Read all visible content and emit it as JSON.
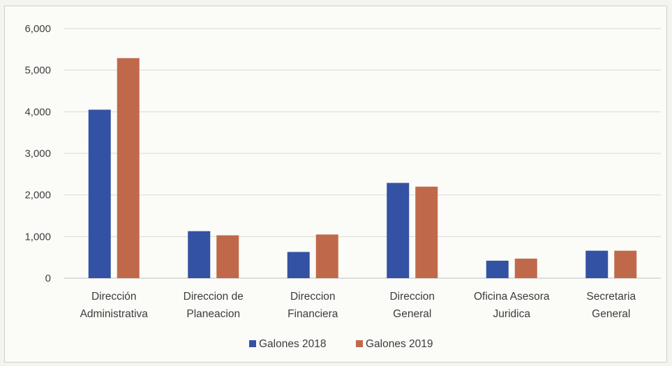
{
  "chart_data": {
    "type": "bar",
    "title": "",
    "xlabel": "",
    "ylabel": "",
    "categories": [
      [
        "Dirección",
        "Administrativa"
      ],
      [
        "Direccion de",
        "Planeacion"
      ],
      [
        "Direccion",
        "Financiera"
      ],
      [
        "Direccion",
        "General"
      ],
      [
        "Oficina Asesora",
        "Juridica"
      ],
      [
        "Secretaria",
        "General"
      ]
    ],
    "series": [
      {
        "name": "Galones 2018",
        "color": "#3452a4",
        "values": [
          4050,
          1130,
          630,
          2290,
          420,
          660
        ]
      },
      {
        "name": "Galones 2019",
        "color": "#c0694a",
        "values": [
          5290,
          1030,
          1050,
          2200,
          470,
          660
        ]
      }
    ],
    "ylim": [
      0,
      6000
    ],
    "y_ticks": [
      0,
      1000,
      2000,
      3000,
      4000,
      5000,
      6000
    ],
    "y_tick_labels": [
      "0",
      "1,000",
      "2,000",
      "3,000",
      "4,000",
      "5,000",
      "6,000"
    ],
    "grid": true,
    "legend_position": "bottom"
  }
}
